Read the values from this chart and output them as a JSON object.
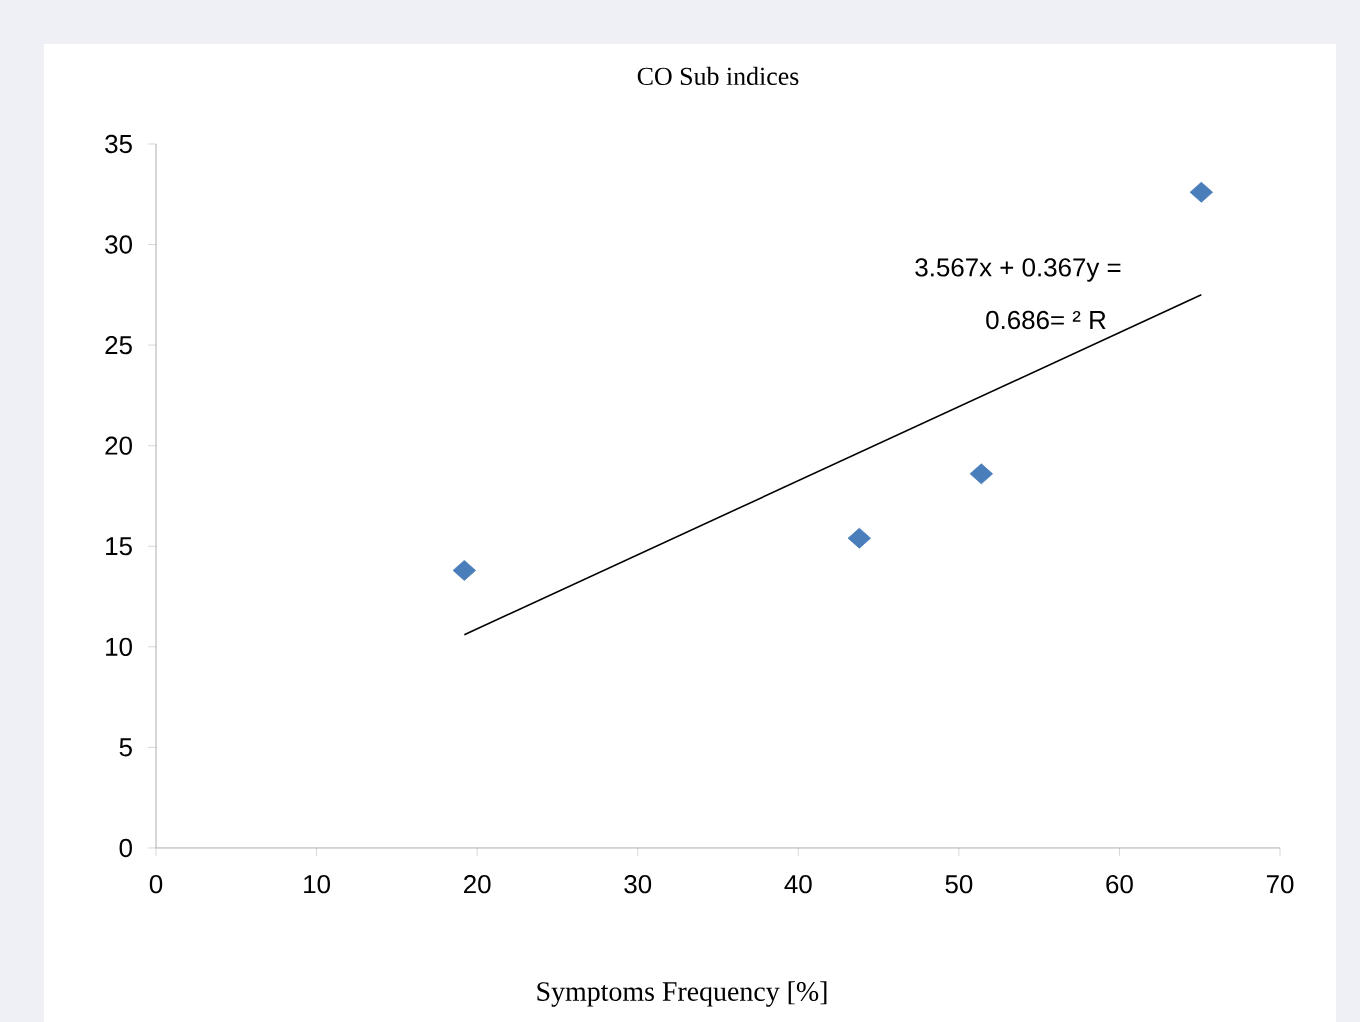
{
  "chart_data": {
    "type": "scatter",
    "title": "CO Sub indices",
    "xlabel": "Symptoms Frequency [%]",
    "xlim": [
      0,
      70
    ],
    "xticks": [
      0,
      10,
      20,
      30,
      40,
      50,
      60,
      70
    ],
    "ylim": [
      0,
      35
    ],
    "yticks": [
      0,
      5,
      10,
      15,
      20,
      25,
      30,
      35
    ],
    "marker": "diamond",
    "grid": false,
    "series": [
      {
        "color": "#4a7ebb",
        "x": [
          19.2,
          43.8,
          51.4,
          65.1
        ],
        "values": [
          13.8,
          15.4,
          18.6,
          32.6
        ]
      },
      {
        "type": "line",
        "color": "#000000",
        "marker": "none",
        "x": [
          19.2,
          65.1
        ],
        "values": [
          10.6,
          27.5
        ]
      }
    ],
    "annotations": [
      "3.567x + 0.367y =",
      "0.686= ² R"
    ]
  }
}
